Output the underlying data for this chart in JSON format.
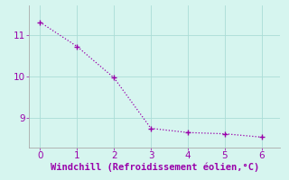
{
  "x": [
    0,
    1,
    2,
    3,
    4,
    5,
    6
  ],
  "y": [
    11.3,
    10.72,
    9.97,
    8.76,
    8.66,
    8.63,
    8.55
  ],
  "line_color": "#9900aa",
  "marker": "+",
  "marker_size": 4,
  "marker_color": "#9900aa",
  "bg_color": "#d6f5ef",
  "grid_color": "#aaddd6",
  "spine_color": "#aaaaaa",
  "xlabel": "Windchill (Refroidissement éolien,°C)",
  "xlabel_color": "#9900aa",
  "xlabel_fontsize": 7.5,
  "tick_color": "#9900aa",
  "tick_fontsize": 7.5,
  "xlim": [
    -0.3,
    6.5
  ],
  "ylim": [
    8.3,
    11.7
  ],
  "yticks": [
    9,
    10,
    11
  ],
  "xticks": [
    0,
    1,
    2,
    3,
    4,
    5,
    6
  ],
  "linewidth": 0.9
}
